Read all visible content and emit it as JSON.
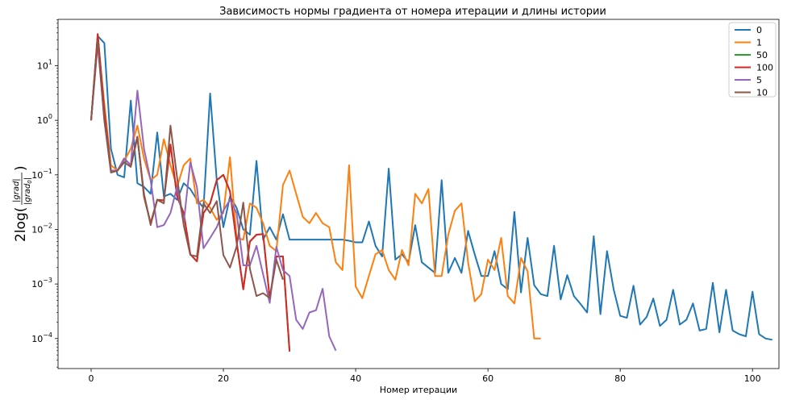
{
  "chart_data": {
    "type": "line",
    "title": "Зависимость нормы градиента от номера итерации и длины истории",
    "xlabel": "Номер итерации",
    "ylabel": "2log(|grad| / |grad₀|)",
    "yscale": "log",
    "xlim": [
      -5,
      104
    ],
    "ylim_exp": [
      -4.55,
      1.85
    ],
    "x_ticks": [
      0,
      20,
      40,
      60,
      80,
      100
    ],
    "y_tick_exponents": [
      -4,
      -3,
      -2,
      -1,
      0,
      1
    ],
    "legend_position": "top-right",
    "grid": false,
    "series": [
      {
        "name": "0",
        "color": "#1f77b4",
        "values": [
          1.0,
          35,
          26,
          0.3,
          0.1,
          0.09,
          2.3,
          0.07,
          0.06,
          0.045,
          0.6,
          0.04,
          0.045,
          0.035,
          0.07,
          0.055,
          0.035,
          0.025,
          3.1,
          0.08,
          0.011,
          0.04,
          0.025,
          0.01,
          0.008,
          0.18,
          0.0065,
          0.011,
          0.0065,
          0.019,
          0.0065,
          0.0065,
          0.0065,
          0.0065,
          0.0065,
          0.0065,
          0.0065,
          0.0065,
          0.0065,
          0.0062,
          0.0058,
          0.0058,
          0.014,
          0.005,
          0.0032,
          0.13,
          0.0028,
          0.0035,
          0.0025,
          0.012,
          0.0025,
          0.002,
          0.0016,
          0.08,
          0.0016,
          0.003,
          0.0016,
          0.0094,
          0.0035,
          0.0014,
          0.0014,
          0.004,
          0.001,
          0.0008,
          0.021,
          0.0007,
          0.007,
          0.00095,
          0.00065,
          0.0006,
          0.005,
          0.00052,
          0.00145,
          0.0006,
          0.00043,
          0.0003,
          0.0075,
          0.00028,
          0.004,
          0.0008,
          0.00026,
          0.00024,
          0.00093,
          0.00018,
          0.00025,
          0.00054,
          0.00017,
          0.00022,
          0.00078,
          0.00018,
          0.00022,
          0.00044,
          0.00014,
          0.00015,
          0.00105,
          0.00013,
          0.00078,
          0.00014,
          0.00012,
          0.00011,
          0.00072,
          0.00012,
          0.0001,
          9.5e-05
        ]
      },
      {
        "name": "1",
        "color": "#ff7f0e",
        "values": [
          1.0,
          33,
          2,
          0.15,
          0.12,
          0.18,
          0.3,
          0.8,
          0.2,
          0.08,
          0.1,
          0.45,
          0.15,
          0.06,
          0.15,
          0.2,
          0.03,
          0.035,
          0.025,
          0.015,
          0.02,
          0.21,
          0.007,
          0.0065,
          0.03,
          0.025,
          0.013,
          0.005,
          0.004,
          0.065,
          0.12,
          0.045,
          0.017,
          0.013,
          0.02,
          0.013,
          0.011,
          0.0025,
          0.0018,
          0.15,
          0.0009,
          0.00055,
          0.0014,
          0.0035,
          0.0042,
          0.0018,
          0.0012,
          0.0042,
          0.0022,
          0.045,
          0.03,
          0.055,
          0.0014,
          0.0014,
          0.008,
          0.022,
          0.03,
          0.0025,
          0.00048,
          0.00065,
          0.0028,
          0.0018,
          0.007,
          0.0006,
          0.00044,
          0.003,
          0.0017,
          0.0001,
          0.0001
        ]
      },
      {
        "name": "50",
        "color": "#2ca02c",
        "values": [
          1.0,
          38,
          1.5,
          0.12,
          0.12,
          0.2,
          0.15,
          0.5,
          0.04,
          0.013,
          0.035,
          0.034,
          0.36,
          0.04,
          0.02,
          0.0035,
          0.0026,
          0.02,
          0.03,
          0.08,
          0.1,
          0.05,
          0.006,
          0.0008,
          0.006,
          0.008,
          0.0082,
          0.00055,
          0.0032,
          0.0032,
          5.8e-05
        ]
      },
      {
        "name": "100",
        "color": "#d62728",
        "values": [
          1.0,
          38,
          1.5,
          0.12,
          0.12,
          0.2,
          0.15,
          0.5,
          0.04,
          0.013,
          0.035,
          0.034,
          0.36,
          0.04,
          0.02,
          0.0035,
          0.0026,
          0.02,
          0.03,
          0.08,
          0.1,
          0.05,
          0.006,
          0.0008,
          0.006,
          0.008,
          0.0082,
          0.00055,
          0.0032,
          0.0032,
          5.8e-05
        ]
      },
      {
        "name": "5",
        "color": "#9467bd",
        "values": [
          1.0,
          25,
          1.0,
          0.12,
          0.12,
          0.2,
          0.15,
          3.5,
          0.3,
          0.08,
          0.011,
          0.012,
          0.02,
          0.06,
          0.013,
          0.17,
          0.06,
          0.0045,
          0.007,
          0.011,
          0.022,
          0.035,
          0.02,
          0.0022,
          0.0022,
          0.005,
          0.0015,
          0.00045,
          0.0048,
          0.0018,
          0.0014,
          0.00022,
          0.00015,
          0.0003,
          0.00033,
          0.00082,
          0.00011,
          6e-05
        ]
      },
      {
        "name": "10",
        "color": "#8c564b",
        "values": [
          1.0,
          28,
          1.0,
          0.11,
          0.12,
          0.17,
          0.14,
          0.48,
          0.045,
          0.012,
          0.035,
          0.03,
          0.8,
          0.09,
          0.012,
          0.0034,
          0.0032,
          0.03,
          0.02,
          0.033,
          0.0034,
          0.002,
          0.0048,
          0.031,
          0.0019,
          0.0006,
          0.00068,
          0.00055,
          0.0028,
          0.0012
        ]
      }
    ]
  }
}
